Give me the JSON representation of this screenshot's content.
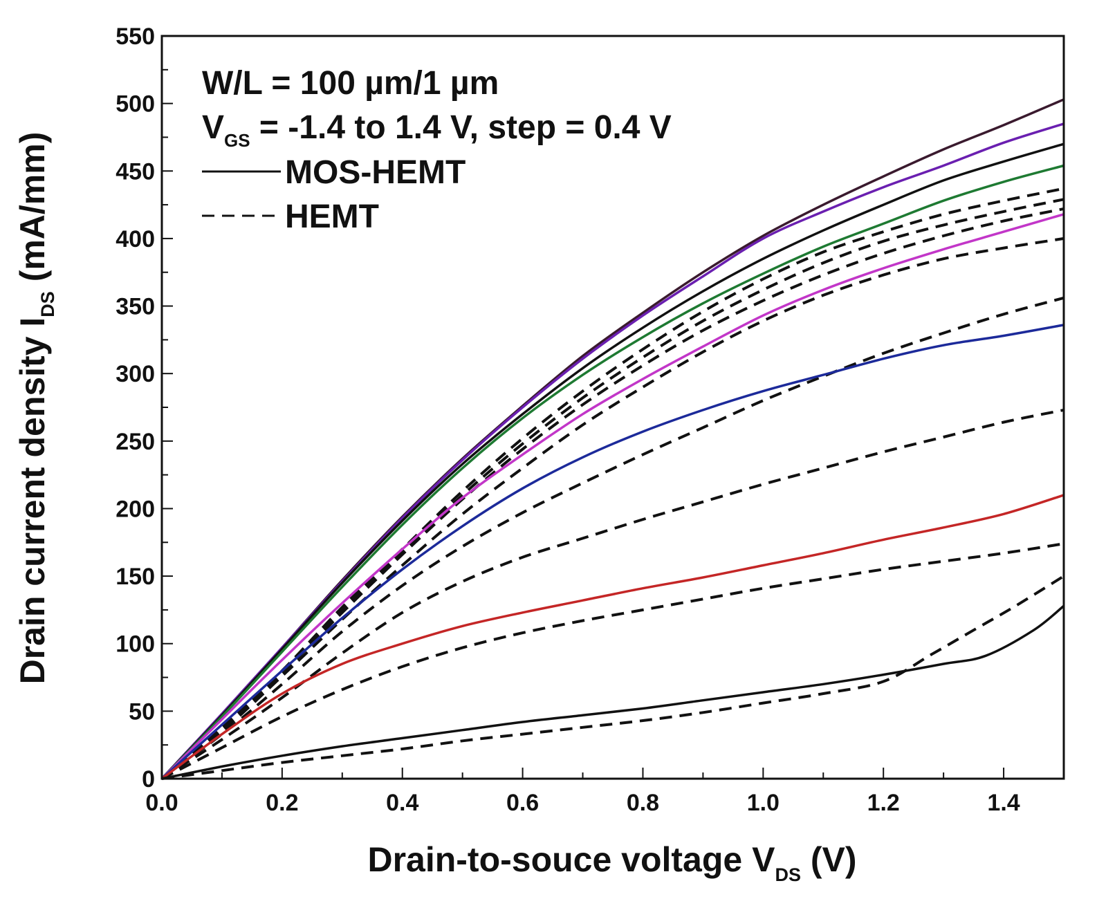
{
  "chart_data": {
    "type": "line",
    "title": "",
    "xlabel": {
      "main": "Drain-to-souce voltage V",
      "sub": "DS",
      "unit": " (V)"
    },
    "ylabel": {
      "main": "Drain current density I",
      "sub": "DS",
      "unit": " (mA/mm)"
    },
    "xlim": [
      0,
      1.5
    ],
    "ylim": [
      0,
      550
    ],
    "xticks": [
      "0.0",
      "0.2",
      "0.4",
      "0.6",
      "0.8",
      "1.0",
      "1.2",
      "1.4"
    ],
    "xtick_values": [
      0,
      0.2,
      0.4,
      0.6,
      0.8,
      1.0,
      1.2,
      1.4
    ],
    "yticks": [
      "0",
      "50",
      "100",
      "150",
      "200",
      "250",
      "300",
      "350",
      "400",
      "450",
      "500",
      "550"
    ],
    "ytick_values": [
      0,
      50,
      100,
      150,
      200,
      250,
      300,
      350,
      400,
      450,
      500,
      550
    ],
    "annotations": {
      "line1": "W/L = 100 µm/1 µm",
      "line2_prefix": "V",
      "line2_sub": "GS",
      "line2_rest": " = -1.4 to 1.4 V, step = 0.4 V"
    },
    "legend": [
      {
        "label": "MOS-HEMT",
        "style": "solid"
      },
      {
        "label": "HEMT",
        "style": "dashed"
      }
    ],
    "series": [
      {
        "name": "MOS-HEMT VGS=1.4 V",
        "style": "solid",
        "color": "#3a1a2e",
        "x": [
          0,
          0.1,
          0.2,
          0.3,
          0.4,
          0.5,
          0.6,
          0.7,
          0.8,
          0.9,
          1.0,
          1.1,
          1.2,
          1.3,
          1.4,
          1.5
        ],
        "y": [
          0,
          48,
          97,
          147,
          194,
          237,
          276,
          313,
          345,
          375,
          402,
          425,
          446,
          466,
          484,
          503
        ]
      },
      {
        "name": "MOS-HEMT VGS=1.0 V",
        "style": "solid",
        "color": "#6a1fb0",
        "x": [
          0,
          0.1,
          0.2,
          0.3,
          0.4,
          0.5,
          0.6,
          0.7,
          0.8,
          0.9,
          1.0,
          1.1,
          1.2,
          1.3,
          1.4,
          1.5
        ],
        "y": [
          0,
          48,
          97,
          146,
          193,
          236,
          275,
          311,
          343,
          372,
          400,
          420,
          438,
          454,
          471,
          485
        ]
      },
      {
        "name": "MOS-HEMT VGS=0.6 V",
        "style": "solid",
        "color": "#111111",
        "x": [
          0,
          0.1,
          0.2,
          0.3,
          0.4,
          0.5,
          0.6,
          0.7,
          0.8,
          0.9,
          1.0,
          1.1,
          1.2,
          1.3,
          1.4,
          1.5
        ],
        "y": [
          0,
          47,
          96,
          145,
          191,
          233,
          270,
          304,
          334,
          361,
          385,
          406,
          425,
          443,
          457,
          470
        ]
      },
      {
        "name": "MOS-HEMT VGS=0.2 V",
        "style": "solid",
        "color": "#1e7a32",
        "x": [
          0,
          0.1,
          0.2,
          0.3,
          0.4,
          0.5,
          0.6,
          0.7,
          0.8,
          0.9,
          1.0,
          1.1,
          1.2,
          1.3,
          1.4,
          1.5
        ],
        "y": [
          0,
          46,
          94,
          142,
          188,
          230,
          267,
          299,
          327,
          352,
          374,
          394,
          411,
          428,
          442,
          454
        ]
      },
      {
        "name": "MOS-HEMT VGS=-0.2 V",
        "style": "solid",
        "color": "#c236c8",
        "x": [
          0,
          0.1,
          0.2,
          0.3,
          0.4,
          0.5,
          0.6,
          0.7,
          0.8,
          0.9,
          1.0,
          1.1,
          1.2,
          1.3,
          1.4,
          1.5
        ],
        "y": [
          0,
          44,
          88,
          130,
          170,
          208,
          240,
          270,
          296,
          320,
          343,
          362,
          378,
          392,
          405,
          418
        ]
      },
      {
        "name": "MOS-HEMT VGS=-0.6 V",
        "style": "solid",
        "color": "#1c2a9a",
        "x": [
          0,
          0.1,
          0.2,
          0.3,
          0.4,
          0.5,
          0.6,
          0.7,
          0.8,
          0.9,
          1.0,
          1.1,
          1.2,
          1.3,
          1.4,
          1.5
        ],
        "y": [
          0,
          40,
          80,
          119,
          155,
          187,
          215,
          238,
          257,
          273,
          287,
          299,
          311,
          321,
          328,
          336
        ]
      },
      {
        "name": "MOS-HEMT VGS=-1.0 V",
        "style": "solid",
        "color": "#c42626",
        "x": [
          0,
          0.1,
          0.2,
          0.3,
          0.4,
          0.5,
          0.6,
          0.7,
          0.8,
          0.9,
          1.0,
          1.1,
          1.2,
          1.3,
          1.4,
          1.5
        ],
        "y": [
          0,
          33,
          63,
          85,
          100,
          113,
          123,
          132,
          141,
          149,
          158,
          167,
          177,
          186,
          196,
          210
        ]
      },
      {
        "name": "MOS-HEMT VGS=-1.4 V",
        "style": "solid",
        "color": "#111111",
        "x": [
          0,
          0.1,
          0.2,
          0.3,
          0.4,
          0.5,
          0.6,
          0.7,
          0.8,
          0.9,
          1.0,
          1.1,
          1.2,
          1.3,
          1.37,
          1.45,
          1.5
        ],
        "y": [
          0,
          9,
          17,
          24,
          30,
          36,
          42,
          47,
          52,
          58,
          64,
          70,
          77,
          85,
          91,
          110,
          128
        ]
      },
      {
        "name": "HEMT VGS=1.4 V",
        "style": "dashed",
        "color": "#111111",
        "x": [
          0,
          0.1,
          0.2,
          0.3,
          0.4,
          0.5,
          0.6,
          0.7,
          0.8,
          0.9,
          1.0,
          1.1,
          1.2,
          1.3,
          1.4,
          1.5
        ],
        "y": [
          0,
          38,
          80,
          127,
          170,
          213,
          252,
          287,
          318,
          346,
          370,
          390,
          405,
          418,
          428,
          437
        ]
      },
      {
        "name": "HEMT VGS=1.0 V",
        "style": "dashed",
        "color": "#111111",
        "x": [
          0,
          0.1,
          0.2,
          0.3,
          0.4,
          0.5,
          0.6,
          0.7,
          0.8,
          0.9,
          1.0,
          1.1,
          1.2,
          1.3,
          1.4,
          1.5
        ],
        "y": [
          0,
          37,
          79,
          125,
          168,
          210,
          248,
          282,
          312,
          339,
          362,
          382,
          398,
          410,
          420,
          429
        ]
      },
      {
        "name": "HEMT VGS=0.6 V",
        "style": "dashed",
        "color": "#111111",
        "x": [
          0,
          0.1,
          0.2,
          0.3,
          0.4,
          0.5,
          0.6,
          0.7,
          0.8,
          0.9,
          1.0,
          1.1,
          1.2,
          1.3,
          1.4,
          1.5
        ],
        "y": [
          0,
          36,
          78,
          123,
          166,
          207,
          244,
          277,
          306,
          332,
          354,
          373,
          389,
          402,
          413,
          422
        ]
      },
      {
        "name": "HEMT VGS=0.2 V",
        "style": "dashed",
        "color": "#111111",
        "x": [
          0,
          0.1,
          0.2,
          0.3,
          0.4,
          0.5,
          0.6,
          0.7,
          0.8,
          0.9,
          1.0,
          1.1,
          1.2,
          1.3,
          1.4,
          1.5
        ],
        "y": [
          0,
          35,
          76,
          118,
          158,
          196,
          230,
          262,
          290,
          316,
          339,
          358,
          373,
          385,
          393,
          400
        ]
      },
      {
        "name": "HEMT VGS=-0.2 V",
        "style": "dashed",
        "color": "#111111",
        "x": [
          0,
          0.1,
          0.2,
          0.3,
          0.4,
          0.5,
          0.6,
          0.7,
          0.8,
          0.9,
          1.0,
          1.1,
          1.2,
          1.3,
          1.4,
          1.5
        ],
        "y": [
          0,
          33,
          70,
          109,
          143,
          172,
          197,
          219,
          240,
          260,
          280,
          298,
          315,
          330,
          344,
          356
        ]
      },
      {
        "name": "HEMT VGS=-0.6 V",
        "style": "dashed",
        "color": "#111111",
        "x": [
          0,
          0.1,
          0.2,
          0.3,
          0.4,
          0.5,
          0.6,
          0.7,
          0.8,
          0.9,
          1.0,
          1.1,
          1.2,
          1.3,
          1.4,
          1.5
        ],
        "y": [
          0,
          29,
          60,
          93,
          123,
          146,
          164,
          178,
          192,
          205,
          218,
          230,
          242,
          253,
          264,
          273
        ]
      },
      {
        "name": "HEMT VGS=-1.0 V",
        "style": "dashed",
        "color": "#111111",
        "x": [
          0,
          0.1,
          0.2,
          0.3,
          0.4,
          0.5,
          0.6,
          0.7,
          0.8,
          0.9,
          1.0,
          1.1,
          1.2,
          1.3,
          1.4,
          1.5
        ],
        "y": [
          0,
          23,
          46,
          66,
          83,
          97,
          108,
          117,
          125,
          133,
          141,
          148,
          155,
          161,
          167,
          174
        ]
      },
      {
        "name": "HEMT VGS=-1.4 V",
        "style": "dashed",
        "color": "#111111",
        "x": [
          0,
          0.1,
          0.2,
          0.3,
          0.4,
          0.5,
          0.6,
          0.7,
          0.8,
          0.9,
          1.0,
          1.1,
          1.2,
          1.28,
          1.35,
          1.42,
          1.5
        ],
        "y": [
          0,
          6,
          12,
          17,
          22,
          28,
          33,
          38,
          43,
          49,
          56,
          63,
          72,
          92,
          110,
          128,
          150
        ]
      }
    ]
  }
}
